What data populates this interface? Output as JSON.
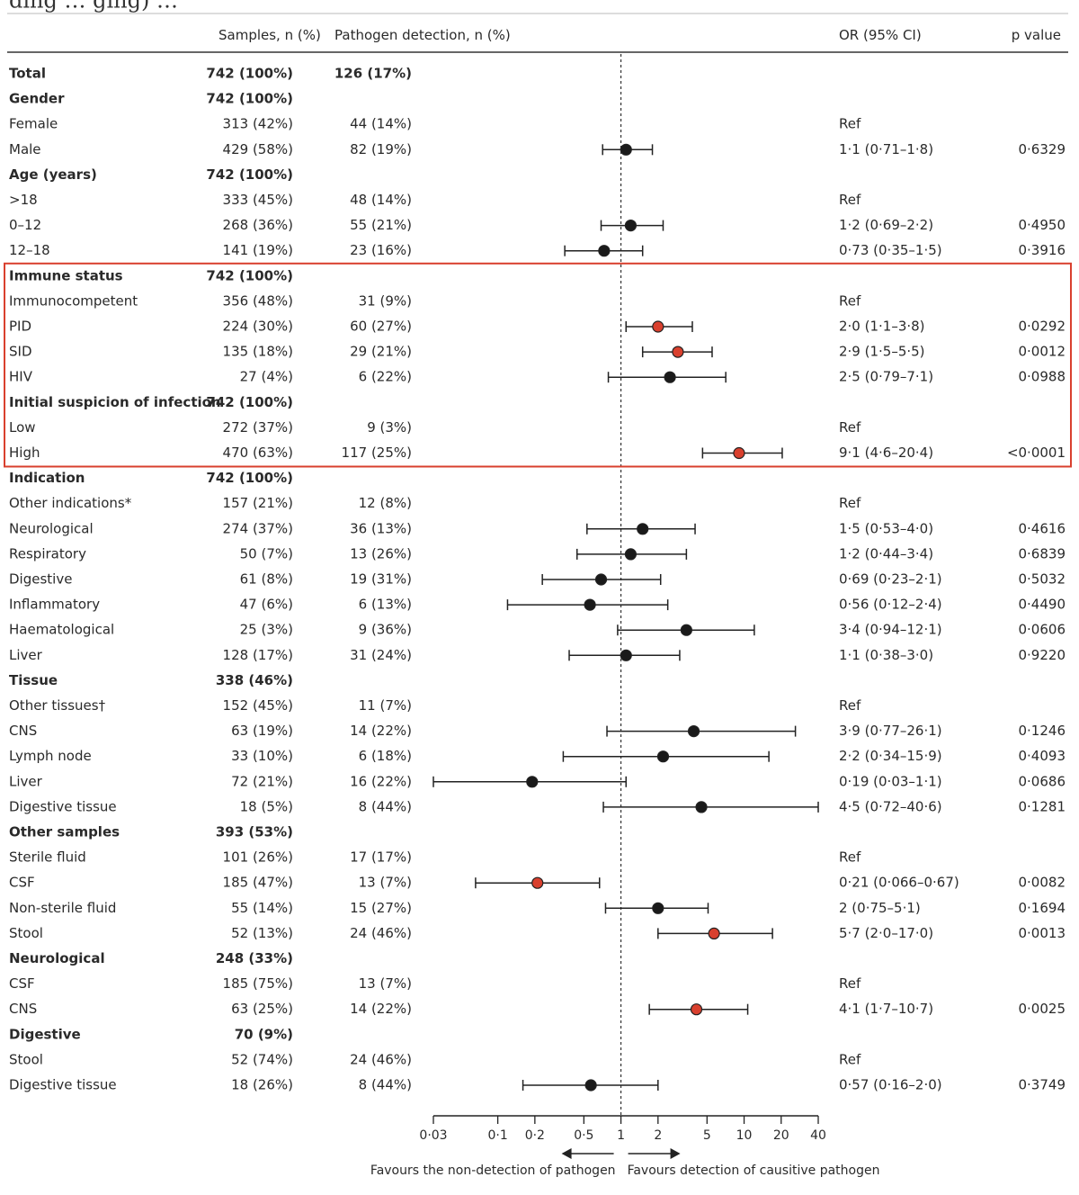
{
  "caption_fragment": "ding … ging) …",
  "chart_data": {
    "type": "forest",
    "headers": {
      "samples": "Samples, n (%)",
      "detection": "Pathogen detection, n (%)",
      "or": "OR (95% CI)",
      "p": "p value"
    },
    "x_scale": "log",
    "xlim": [
      0.03,
      40
    ],
    "x_ticks": [
      {
        "v": 0.03,
        "label": "0·03"
      },
      {
        "v": 0.1,
        "label": "0·1"
      },
      {
        "v": 0.2,
        "label": "0·2"
      },
      {
        "v": 0.5,
        "label": "0·5"
      },
      {
        "v": 1,
        "label": "1"
      },
      {
        "v": 2,
        "label": "2"
      },
      {
        "v": 5,
        "label": "5"
      },
      {
        "v": 10,
        "label": "10"
      },
      {
        "v": 20,
        "label": "20"
      },
      {
        "v": 40,
        "label": "40"
      }
    ],
    "reference_line": 1,
    "favours_left": "Favours the non-detection of pathogen",
    "favours_right": "Favours detection of causitive pathogen",
    "highlight_box": {
      "from_row": "Immune status",
      "to_row": "High",
      "color": "#d9402e"
    },
    "rows": [
      {
        "label": "Total",
        "bold": true,
        "samples": "742 (100%)",
        "detection": "126 (17%)"
      },
      {
        "label": "Gender",
        "bold": true,
        "samples": "742 (100%)"
      },
      {
        "label": "Female",
        "samples": "313 (42%)",
        "detection": "44 (14%)",
        "or_text": "Ref"
      },
      {
        "label": "Male",
        "samples": "429 (58%)",
        "detection": "82 (19%)",
        "or": 1.1,
        "lo": 0.71,
        "hi": 1.8,
        "or_text": "1·1 (0·71–1·8)",
        "p": "0·6329"
      },
      {
        "label": "Age (years)",
        "bold": true,
        "samples": "742 (100%)"
      },
      {
        "label": ">18",
        "samples": "333 (45%)",
        "detection": "48 (14%)",
        "or_text": "Ref"
      },
      {
        "label": "0–12",
        "samples": "268 (36%)",
        "detection": "55 (21%)",
        "or": 1.2,
        "lo": 0.69,
        "hi": 2.2,
        "or_text": "1·2 (0·69–2·2)",
        "p": "0·4950"
      },
      {
        "label": "12–18",
        "samples": "141 (19%)",
        "detection": "23 (16%)",
        "or": 0.73,
        "lo": 0.35,
        "hi": 1.5,
        "or_text": "0·73 (0·35–1·5)",
        "p": "0·3916"
      },
      {
        "label": "Immune status",
        "bold": true,
        "samples": "742 (100%)"
      },
      {
        "label": "Immunocompetent",
        "samples": "356 (48%)",
        "detection": "31 (9%)",
        "or_text": "Ref"
      },
      {
        "label": "PID",
        "samples": "224 (30%)",
        "detection": "60 (27%)",
        "or": 2.0,
        "lo": 1.1,
        "hi": 3.8,
        "or_text": "2·0 (1·1–3·8)",
        "p": "0·0292",
        "significant": true
      },
      {
        "label": "SID",
        "samples": "135 (18%)",
        "detection": "29 (21%)",
        "or": 2.9,
        "lo": 1.5,
        "hi": 5.5,
        "or_text": "2·9 (1·5–5·5)",
        "p": "0·0012",
        "significant": true
      },
      {
        "label": "HIV",
        "samples": "27 (4%)",
        "detection": "6 (22%)",
        "or": 2.5,
        "lo": 0.79,
        "hi": 7.1,
        "or_text": "2·5 (0·79–7·1)",
        "p": "0·0988"
      },
      {
        "label": "Initial suspicion of infection",
        "bold": true,
        "samples": "742 (100%)"
      },
      {
        "label": "Low",
        "samples": "272 (37%)",
        "detection": "9 (3%)",
        "or_text": "Ref"
      },
      {
        "label": "High",
        "samples": "470 (63%)",
        "detection": "117 (25%)",
        "or": 9.1,
        "lo": 4.6,
        "hi": 20.4,
        "or_text": "9·1 (4·6–20·4)",
        "p": "<0·0001",
        "significant": true
      },
      {
        "label": "Indication",
        "bold": true,
        "samples": "742 (100%)"
      },
      {
        "label": "Other indications*",
        "samples": "157 (21%)",
        "detection": "12 (8%)",
        "or_text": "Ref"
      },
      {
        "label": "Neurological",
        "samples": "274 (37%)",
        "detection": "36 (13%)",
        "or": 1.5,
        "lo": 0.53,
        "hi": 4.0,
        "or_text": "1·5 (0·53–4·0)",
        "p": "0·4616"
      },
      {
        "label": "Respiratory",
        "samples": "50 (7%)",
        "detection": "13 (26%)",
        "or": 1.2,
        "lo": 0.44,
        "hi": 3.4,
        "or_text": "1·2 (0·44–3·4)",
        "p": "0·6839"
      },
      {
        "label": "Digestive",
        "samples": "61 (8%)",
        "detection": "19 (31%)",
        "or": 0.69,
        "lo": 0.23,
        "hi": 2.1,
        "or_text": "0·69 (0·23–2·1)",
        "p": "0·5032"
      },
      {
        "label": "Inflammatory",
        "samples": "47 (6%)",
        "detection": "6 (13%)",
        "or": 0.56,
        "lo": 0.12,
        "hi": 2.4,
        "or_text": "0·56 (0·12–2·4)",
        "p": "0·4490"
      },
      {
        "label": "Haematological",
        "samples": "25 (3%)",
        "detection": "9 (36%)",
        "or": 3.4,
        "lo": 0.94,
        "hi": 12.1,
        "or_text": "3·4 (0·94–12·1)",
        "p": "0·0606"
      },
      {
        "label": "Liver",
        "samples": "128 (17%)",
        "detection": "31 (24%)",
        "or": 1.1,
        "lo": 0.38,
        "hi": 3.0,
        "or_text": "1·1 (0·38–3·0)",
        "p": "0·9220"
      },
      {
        "label": "Tissue",
        "bold": true,
        "samples": "338 (46%)"
      },
      {
        "label": "Other tissues†",
        "samples": "152 (45%)",
        "detection": "11 (7%)",
        "or_text": "Ref"
      },
      {
        "label": "CNS",
        "samples": "63 (19%)",
        "detection": "14 (22%)",
        "or": 3.9,
        "lo": 0.77,
        "hi": 26.1,
        "or_text": "3·9 (0·77–26·1)",
        "p": "0·1246"
      },
      {
        "label": "Lymph node",
        "samples": "33 (10%)",
        "detection": "6 (18%)",
        "or": 2.2,
        "lo": 0.34,
        "hi": 15.9,
        "or_text": "2·2 (0·34–15·9)",
        "p": "0·4093"
      },
      {
        "label": "Liver",
        "samples": "72 (21%)",
        "detection": "16 (22%)",
        "or": 0.19,
        "lo": 0.03,
        "hi": 1.1,
        "or_text": "0·19 (0·03–1·1)",
        "p": "0·0686"
      },
      {
        "label": "Digestive tissue",
        "samples": "18 (5%)",
        "detection": "8 (44%)",
        "or": 4.5,
        "lo": 0.72,
        "hi": 40.6,
        "or_text": "4·5 (0·72–40·6)",
        "p": "0·1281"
      },
      {
        "label": "Other samples",
        "bold": true,
        "samples": "393 (53%)"
      },
      {
        "label": "Sterile fluid",
        "samples": "101 (26%)",
        "detection": "17 (17%)",
        "or_text": "Ref"
      },
      {
        "label": "CSF",
        "samples": "185 (47%)",
        "detection": "13 (7%)",
        "or": 0.21,
        "lo": 0.066,
        "hi": 0.67,
        "or_text": "0·21 (0·066–0·67)",
        "p": "0·0082",
        "significant": true
      },
      {
        "label": "Non-sterile fluid",
        "samples": "55 (14%)",
        "detection": "15 (27%)",
        "or": 2,
        "lo": 0.75,
        "hi": 5.1,
        "or_text": "2 (0·75–5·1)",
        "p": "0·1694"
      },
      {
        "label": "Stool",
        "samples": "52 (13%)",
        "detection": "24 (46%)",
        "or": 5.7,
        "lo": 2.0,
        "hi": 17.0,
        "or_text": "5·7 (2·0–17·0)",
        "p": "0·0013",
        "significant": true
      },
      {
        "label": "Neurological",
        "bold": true,
        "samples": "248 (33%)"
      },
      {
        "label": "CSF",
        "samples": "185 (75%)",
        "detection": "13 (7%)",
        "or_text": "Ref"
      },
      {
        "label": "CNS",
        "samples": "63 (25%)",
        "detection": "14 (22%)",
        "or": 4.1,
        "lo": 1.7,
        "hi": 10.7,
        "or_text": "4·1 (1·7–10·7)",
        "p": "0·0025",
        "significant": true
      },
      {
        "label": "Digestive",
        "bold": true,
        "samples": "70 (9%)"
      },
      {
        "label": "Stool",
        "samples": "52 (74%)",
        "detection": "24 (46%)",
        "or_text": "Ref"
      },
      {
        "label": "Digestive tissue",
        "samples": "18 (26%)",
        "detection": "8 (44%)",
        "or": 0.57,
        "lo": 0.16,
        "hi": 2.0,
        "or_text": "0·57 (0·16–2·0)",
        "p": "0·3749"
      }
    ],
    "colors": {
      "significant": "#d9402e",
      "normal": "#1a1a1a",
      "box": "#d9402e"
    }
  }
}
